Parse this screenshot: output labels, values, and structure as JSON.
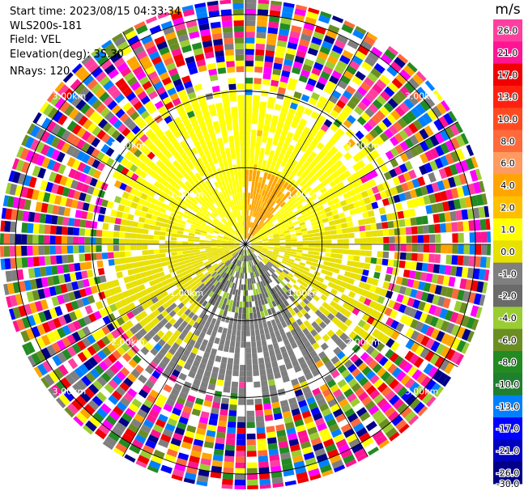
{
  "header": {
    "start_time": "Start time: 2023/08/15 04:33:34",
    "station": "WLS200s-181",
    "field": "Field: VEL",
    "elevation": "Elevation(deg): 35.30",
    "nrays": "NRays: 120"
  },
  "colorbar": {
    "unit": "m/s",
    "ticks": [
      "26.0",
      "21.0",
      "17.0",
      "13.0",
      "10.0",
      "8.0",
      "6.0",
      "4.0",
      "2.0",
      "1.0",
      "0.0",
      "-1.0",
      "-2.0",
      "-4.0",
      "-6.0",
      "-8.0",
      "-10.0",
      "-13.0",
      "-17.0",
      "-21.0",
      "-26.0",
      "-30.0"
    ],
    "colors": [
      "#ff3fa0",
      "#ff1493",
      "#f00000",
      "#ff2010",
      "#ff4a20",
      "#ff6a3a",
      "#ff9a60",
      "#ffa500",
      "#ffc000",
      "#ffff00",
      "#e8e000",
      "#7f7f7f",
      "#6a6a6a",
      "#9acd32",
      "#6b8e23",
      "#228b22",
      "#1e7f2e",
      "#0080ff",
      "#0000ff",
      "#0000c0",
      "#000088",
      "#000050"
    ]
  },
  "chart_data": {
    "type": "ppi-radar",
    "title": "Start time: 2023/08/15 04:33:34 WLS200s-181 Field: VEL",
    "field": "VEL",
    "units": "m/s",
    "elevation_deg": 35.3,
    "n_rays": 120,
    "range_rings_km": [
      1.0,
      2.0,
      3.0
    ],
    "ring_labels": [
      "1.00km",
      "2.00km",
      "3.00km"
    ],
    "max_range_km": 3.2,
    "velocity_range": [
      -30.0,
      26.0
    ],
    "dominant_patterns": [
      {
        "region": "north",
        "range_km": [
          0.0,
          1.7
        ],
        "velocity_ms": 3.0
      },
      {
        "region": "north-near",
        "range_km": [
          0.2,
          0.9
        ],
        "velocity_ms": 6.0
      },
      {
        "region": "east-west band",
        "range_km": [
          0.0,
          1.6
        ],
        "velocity_ms": 0.0
      },
      {
        "region": "south",
        "range_km": [
          0.0,
          2.0
        ],
        "velocity_ms": -2.5
      },
      {
        "region": "south-near",
        "range_km": [
          0.2,
          0.9
        ],
        "velocity_ms": -6.0
      },
      {
        "region": "outer",
        "range_km": [
          1.8,
          3.2
        ],
        "velocity_ms": "noise"
      }
    ]
  }
}
